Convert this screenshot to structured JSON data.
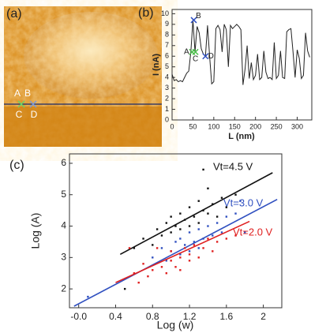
{
  "chart_data": [
    {
      "type": "image",
      "label": "(a)",
      "markers": [
        {
          "label": "A",
          "color": "#6ad36a"
        },
        {
          "label": "B",
          "color": "#6ad36a"
        },
        {
          "label": "C",
          "color": "#7a9ad8"
        },
        {
          "label": "D",
          "color": "#7a9ad8"
        }
      ]
    },
    {
      "type": "line",
      "label": "(b)",
      "x_label": "L (nm)",
      "y_label": "I (nA)",
      "xlim": [
        0,
        335
      ],
      "ylim": [
        0,
        10.4
      ],
      "xticks": [
        0,
        50,
        100,
        150,
        200,
        250,
        300
      ],
      "yticks": [
        0,
        1,
        2,
        3,
        4,
        5,
        6,
        7,
        8,
        9,
        10
      ],
      "x": [
        0,
        5,
        10,
        15,
        20,
        25,
        30,
        35,
        40,
        45,
        50,
        55,
        60,
        65,
        70,
        75,
        80,
        85,
        90,
        95,
        100,
        105,
        110,
        115,
        120,
        125,
        130,
        135,
        140,
        145,
        150,
        155,
        160,
        165,
        170,
        175,
        180,
        185,
        190,
        195,
        200,
        205,
        210,
        215,
        220,
        225,
        230,
        235,
        240,
        245,
        250,
        255,
        260,
        265,
        270,
        275,
        280,
        285,
        290,
        295,
        300,
        305,
        310,
        315,
        320,
        325,
        330
      ],
      "series": [
        {
          "color": "#222222",
          "values": [
            4.3,
            3.7,
            3.8,
            3.6,
            3.7,
            3.6,
            4.0,
            4.4,
            4.6,
            6.4,
            9.4,
            6.4,
            8.8,
            8.2,
            6.7,
            6.2,
            6.0,
            8.9,
            6.0,
            3.4,
            3.6,
            8.6,
            8.9,
            8.5,
            6.4,
            9.0,
            8.5,
            5.0,
            8.9,
            8.6,
            8.8,
            9.0,
            8.8,
            8.5,
            3.3,
            4.8,
            7.0,
            3.9,
            5.4,
            3.8,
            4.2,
            6.2,
            3.8,
            4.0,
            6.5,
            4.5,
            3.9,
            4.0,
            3.8,
            7.3,
            3.9,
            4.2,
            6.5,
            4.0,
            3.9,
            8.3,
            8.5,
            8.6,
            6.4,
            4.0,
            6.6,
            5.8,
            3.9,
            4.2,
            8.2,
            6.5,
            5.9
          ]
        }
      ],
      "points": [
        {
          "label": "A",
          "x": 48,
          "y": 6.4,
          "color": "#4cc04c"
        },
        {
          "label": "B",
          "x": 52,
          "y": 9.4,
          "color": "#3050c0"
        },
        {
          "label": "C",
          "x": 56,
          "y": 6.4,
          "color": "#4cc04c"
        },
        {
          "label": "D",
          "x": 80,
          "y": 6.0,
          "color": "#3050c0"
        }
      ]
    },
    {
      "type": "scatter",
      "label": "(c)",
      "x_label": "Log (w)",
      "y_label": "Log (A)",
      "xlim": [
        -0.1,
        2.2
      ],
      "ylim": [
        1.4,
        6.3
      ],
      "xticks": [
        {
          "value": 0,
          "label": "-0.0"
        },
        0.4,
        0.8,
        1.2,
        1.6,
        2.0
      ],
      "yticks": [
        2,
        3,
        4,
        5,
        6
      ],
      "series": [
        {
          "name": "Vt=4.5 V",
          "color": "#111111",
          "x": [
            0.6,
            0.7,
            0.8,
            0.85,
            0.9,
            0.95,
            1.0,
            1.0,
            1.05,
            1.1,
            1.1,
            1.15,
            1.2,
            1.2,
            1.25,
            1.3,
            1.3,
            1.35,
            1.4,
            1.4,
            1.45,
            1.5,
            1.55,
            1.6,
            1.7,
            1.35,
            0.5
          ],
          "values": [
            3.3,
            3.6,
            3.4,
            3.9,
            3.7,
            4.1,
            3.8,
            4.3,
            4.0,
            4.4,
            3.9,
            4.2,
            4.6,
            4.0,
            4.3,
            4.8,
            4.1,
            4.5,
            5.2,
            4.4,
            4.7,
            4.3,
            4.9,
            4.6,
            5.0,
            5.8,
            2.0
          ],
          "fit_x": [
            0.45,
            2.1
          ],
          "fit_values": [
            3.1,
            5.7
          ]
        },
        {
          "name": "Vt=3.0 V",
          "color": "#3050c0",
          "x": [
            0.1,
            0.8,
            0.9,
            0.95,
            1.0,
            1.05,
            1.1,
            1.1,
            1.15,
            1.2,
            1.2,
            1.25,
            1.3,
            1.3,
            1.35,
            1.4,
            1.45,
            1.5,
            1.55,
            1.6,
            1.7,
            1.8,
            1.75
          ],
          "values": [
            1.75,
            3.0,
            3.3,
            2.9,
            3.2,
            3.5,
            3.1,
            3.6,
            3.4,
            3.8,
            3.2,
            3.5,
            3.9,
            3.3,
            3.6,
            4.0,
            3.7,
            4.1,
            3.8,
            4.3,
            4.4,
            3.8,
            4.8
          ],
          "fit_x": [
            -0.05,
            2.15
          ],
          "fit_values": [
            1.45,
            4.85
          ]
        },
        {
          "name": "Vt=2.0 V",
          "color": "#e02020",
          "x": [
            0.6,
            0.65,
            0.7,
            0.75,
            0.8,
            0.85,
            0.9,
            0.95,
            1.0,
            1.0,
            1.05,
            1.1,
            1.1,
            1.15,
            1.2,
            1.2,
            1.25,
            1.3,
            1.35,
            1.4,
            1.45,
            1.5,
            1.6,
            1.7,
            0.55
          ],
          "values": [
            2.5,
            2.2,
            2.8,
            2.4,
            2.6,
            3.3,
            2.7,
            2.5,
            2.9,
            3.2,
            2.7,
            3.0,
            2.6,
            3.3,
            2.9,
            3.1,
            3.4,
            3.0,
            3.3,
            3.6,
            3.2,
            3.5,
            3.6,
            3.7,
            3.3
          ],
          "fit_x": [
            0.4,
            1.85
          ],
          "fit_values": [
            2.2,
            4.15
          ]
        }
      ]
    }
  ]
}
